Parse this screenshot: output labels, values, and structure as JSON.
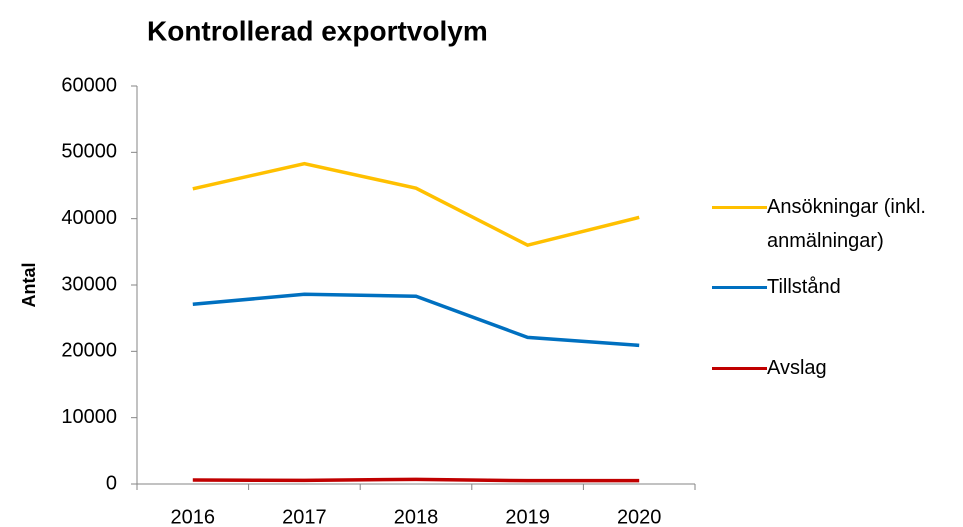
{
  "chart_data": {
    "type": "line",
    "title": "Kontrollerad exportvolym",
    "y_label": "Antal",
    "categories": [
      "2016",
      "2017",
      "2018",
      "2019",
      "2020"
    ],
    "series": [
      {
        "name": "Ansökningar (inkl. anmälningar)",
        "color": "#ffc000",
        "values": [
          44500,
          48300,
          44600,
          36000,
          40200
        ]
      },
      {
        "name": "Tillstånd",
        "color": "#0070c0",
        "values": [
          27100,
          28600,
          28300,
          22100,
          20900
        ]
      },
      {
        "name": "Avslag",
        "color": "#c00000",
        "values": [
          600,
          550,
          700,
          500,
          500
        ]
      }
    ],
    "ylim": [
      0,
      60000
    ],
    "yticks": [
      0,
      10000,
      20000,
      30000,
      40000,
      50000,
      60000
    ],
    "grid": false,
    "legend": "right"
  }
}
